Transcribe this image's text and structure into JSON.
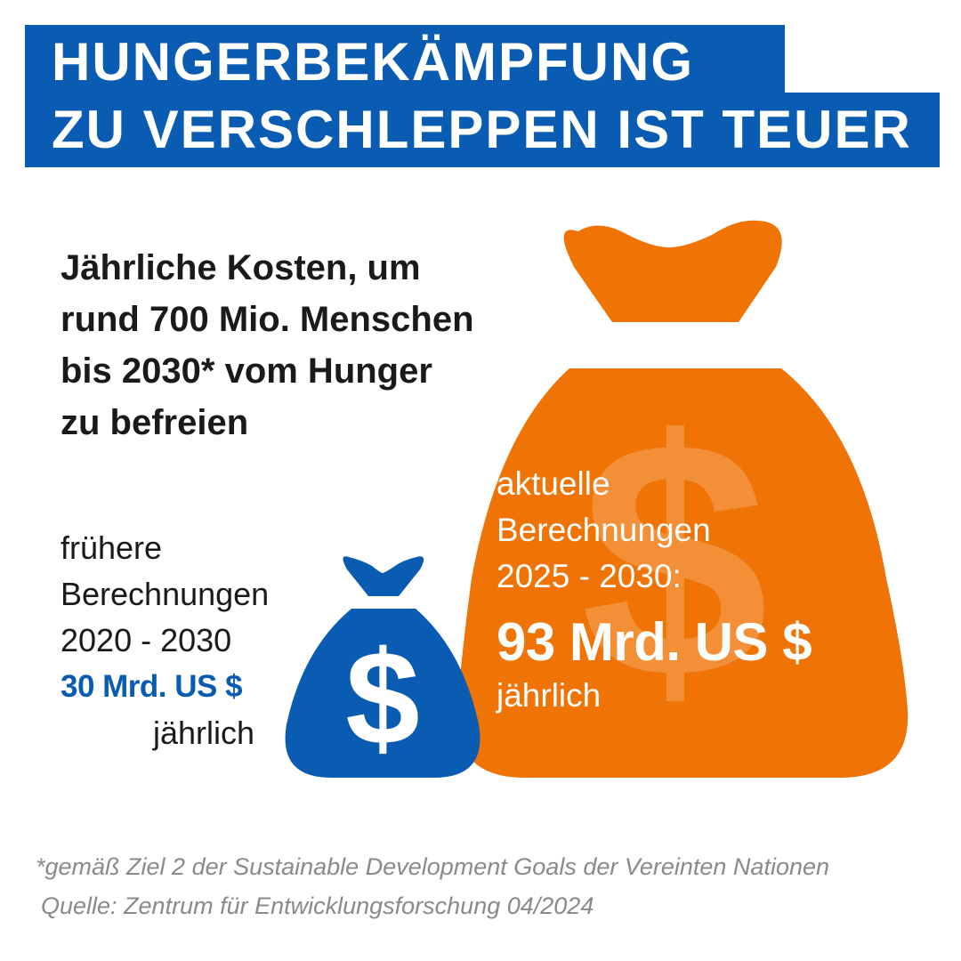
{
  "header": {
    "title_line1": "HUNGERBEKÄMPFUNG",
    "title_line2": "ZU VERSCHLEPPEN IST TEUER"
  },
  "subtitle": {
    "lines": [
      "Jährliche Kosten, um",
      "rund 700 Mio. Menschen",
      "bis 2030* vom Hunger",
      "zu befreien"
    ]
  },
  "earlier": {
    "line1": "frühere",
    "line2": "Berechnungen",
    "period": "2020 - 2030",
    "amount": "30 Mrd. US $",
    "unit": "jährlich",
    "value_bn_usd": 30
  },
  "current": {
    "line1": "aktuelle",
    "line2": "Berechnungen",
    "period": "2025 - 2030:",
    "amount": "93 Mrd. US $",
    "unit": "jährlich",
    "value_bn_usd": 93
  },
  "footnote": {
    "note": "*gemäß Ziel 2 der Sustainable Development Goals der Vereinten Nationen",
    "source": "Quelle: Zentrum für Entwicklungsforschung 04/2024"
  },
  "icons": {
    "small_bag": "money-bag-dollar-icon",
    "large_bag": "money-bag-dollar-icon"
  },
  "colors": {
    "brand_blue": "#0a5cb3",
    "orange": "#ef7305",
    "text_dark": "#1a1a1a",
    "footnote_gray": "#8a8a8a"
  }
}
